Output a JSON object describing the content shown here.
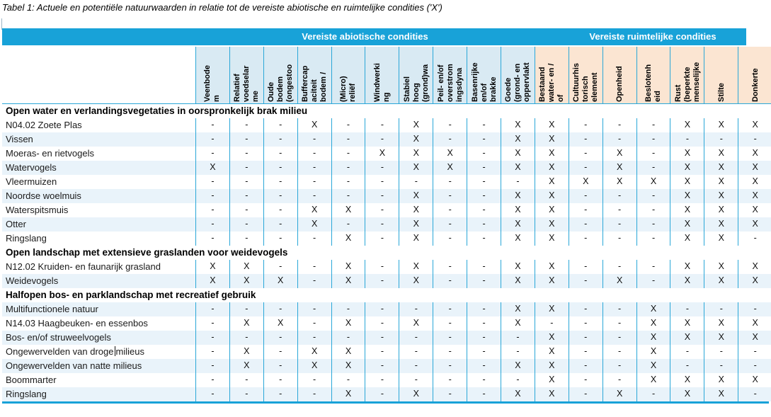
{
  "title": "Tabel 1: Actuele en potentiële natuurwaarden in relatie tot de vereiste abiotische en ruimtelijke condities ('X')",
  "groups": [
    {
      "key": "abio",
      "label": "Vereiste abiotische condities"
    },
    {
      "key": "ruim",
      "label": "Vereiste ruimtelijke condities"
    }
  ],
  "columns": [
    {
      "group": "abio",
      "lines": [
        "Veenbode",
        "m"
      ]
    },
    {
      "group": "abio",
      "lines": [
        "Relatief",
        "voedselar",
        "me"
      ]
    },
    {
      "group": "abio",
      "lines": [
        "Oude",
        "bodem",
        "(ongestoo"
      ]
    },
    {
      "group": "abio",
      "lines": [
        "Buffercap",
        "aciteit",
        "bodem /"
      ]
    },
    {
      "group": "abio",
      "lines": [
        "(Micro)",
        "reliëf"
      ]
    },
    {
      "group": "abio",
      "lines": [
        "Windwerki",
        "ng"
      ]
    },
    {
      "group": "abio",
      "lines": [
        "Stabiel",
        "hoog",
        "(grond)wa"
      ]
    },
    {
      "group": "abio",
      "lines": [
        "Peil- en/of",
        "overstrom",
        "ingsdyna"
      ]
    },
    {
      "group": "abio",
      "lines": [
        "Basenrijke",
        "en/of",
        "brakke"
      ]
    },
    {
      "group": "abio",
      "lines": [
        "Goede",
        "(grond- en",
        "oppervlakt"
      ]
    },
    {
      "group": "ruim",
      "lines": [
        "Bestaand",
        "water- en /",
        "of"
      ]
    },
    {
      "group": "ruim",
      "lines": [
        "Cultuurhis",
        "torisch",
        "element"
      ]
    },
    {
      "group": "ruim",
      "lines": [
        "Openheid"
      ]
    },
    {
      "group": "ruim",
      "lines": [
        "Beslotenh",
        "eid"
      ]
    },
    {
      "group": "ruim",
      "lines": [
        "Rust",
        "(beperkte",
        "menselijke"
      ]
    },
    {
      "group": "ruim",
      "lines": [
        "Stilte"
      ]
    },
    {
      "group": "ruim",
      "lines": [
        "Donkerte"
      ]
    }
  ],
  "rows": [
    {
      "type": "section",
      "label": "Open water en verlandingsvegetaties in oorspronkelijk brak milieu"
    },
    {
      "type": "data",
      "shade": false,
      "label": "N04.02 Zoete Plas",
      "values": [
        "-",
        "-",
        "-",
        "X",
        "-",
        "-",
        "X",
        "-",
        "-",
        "X",
        "X",
        "-",
        "-",
        "-",
        "X",
        "X",
        "X"
      ]
    },
    {
      "type": "data",
      "shade": true,
      "label": "Vissen",
      "values": [
        "-",
        "-",
        "-",
        "-",
        "-",
        "-",
        "X",
        "-",
        "-",
        "X",
        "X",
        "-",
        "-",
        "-",
        "-",
        "-",
        "-"
      ]
    },
    {
      "type": "data",
      "shade": false,
      "label": "Moeras- en rietvogels",
      "values": [
        "-",
        "-",
        "-",
        "-",
        "-",
        "X",
        "X",
        "X",
        "-",
        "X",
        "X",
        "-",
        "X",
        "-",
        "X",
        "X",
        "X"
      ]
    },
    {
      "type": "data",
      "shade": true,
      "label": "Watervogels",
      "values": [
        "X",
        "-",
        "-",
        "-",
        "-",
        "-",
        "X",
        "X",
        "-",
        "X",
        "X",
        "-",
        "X",
        "-",
        "X",
        "X",
        "X"
      ]
    },
    {
      "type": "data",
      "shade": false,
      "label": "Vleermuizen",
      "values": [
        "-",
        "-",
        "-",
        "-",
        "-",
        "-",
        "-",
        "-",
        "-",
        "-",
        "X",
        "X",
        "X",
        "X",
        "X",
        "X",
        "X"
      ]
    },
    {
      "type": "data",
      "shade": true,
      "label": "Noordse woelmuis",
      "values": [
        "-",
        "-",
        "-",
        "-",
        "-",
        "-",
        "X",
        "-",
        "-",
        "X",
        "X",
        "-",
        "-",
        "-",
        "X",
        "X",
        "X"
      ]
    },
    {
      "type": "data",
      "shade": false,
      "label": "Waterspitsmuis",
      "values": [
        "-",
        "-",
        "-",
        "X",
        "X",
        "-",
        "X",
        "-",
        "-",
        "X",
        "X",
        "-",
        "-",
        "-",
        "X",
        "X",
        "X"
      ]
    },
    {
      "type": "data",
      "shade": true,
      "label": "Otter",
      "values": [
        "-",
        "-",
        "-",
        "X",
        "-",
        "-",
        "X",
        "-",
        "-",
        "X",
        "X",
        "-",
        "-",
        "-",
        "X",
        "X",
        "X"
      ]
    },
    {
      "type": "data",
      "shade": false,
      "label": "Ringslang",
      "values": [
        "-",
        "-",
        "-",
        "-",
        "X",
        "-",
        "X",
        "-",
        "-",
        "X",
        "X",
        "-",
        "-",
        "-",
        "X",
        "X",
        "-"
      ]
    },
    {
      "type": "section",
      "label": "Open landschap met extensieve graslanden voor weidevogels"
    },
    {
      "type": "data",
      "shade": false,
      "label": "N12.02 Kruiden- en faunarijk grasland",
      "values": [
        "X",
        "X",
        "-",
        "-",
        "X",
        "-",
        "X",
        "-",
        "-",
        "X",
        "X",
        "-",
        "-",
        "-",
        "X",
        "X",
        "X"
      ]
    },
    {
      "type": "data",
      "shade": true,
      "label": "Weidevogels",
      "values": [
        "X",
        "X",
        "X",
        "-",
        "X",
        "-",
        "X",
        "-",
        "-",
        "X",
        "X",
        "-",
        "X",
        "-",
        "X",
        "X",
        "X"
      ]
    },
    {
      "type": "section",
      "label": "Halfopen bos- en parklandschap met recreatief gebruik"
    },
    {
      "type": "data",
      "shade": true,
      "label": "Multifunctionele natuur",
      "values": [
        "-",
        "-",
        "-",
        "-",
        "-",
        "-",
        "-",
        "-",
        "-",
        "X",
        "X",
        "-",
        "-",
        "X",
        "-",
        "-",
        "-"
      ]
    },
    {
      "type": "data",
      "shade": false,
      "label": "N14.03 Haagbeuken- en essenbos",
      "values": [
        "-",
        "X",
        "X",
        "-",
        "X",
        "-",
        "X",
        "-",
        "-",
        "X",
        "-",
        "-",
        "-",
        "X",
        "X",
        "X",
        "X"
      ]
    },
    {
      "type": "data",
      "shade": true,
      "label": "Bos- en/of struweelvogels",
      "values": [
        "-",
        "-",
        "-",
        "-",
        "-",
        "-",
        "-",
        "-",
        "-",
        "-",
        "X",
        "-",
        "-",
        "X",
        "X",
        "X",
        "X"
      ]
    },
    {
      "type": "data",
      "shade": false,
      "label": "Ongewervelden van droge milieus",
      "caret_split": 23,
      "values": [
        "-",
        "X",
        "-",
        "X",
        "X",
        "-",
        "-",
        "-",
        "-",
        "-",
        "X",
        "-",
        "-",
        "X",
        "-",
        "-",
        "-"
      ]
    },
    {
      "type": "data",
      "shade": true,
      "label": "Ongewervelden van natte milieus",
      "values": [
        "-",
        "X",
        "-",
        "X",
        "X",
        "-",
        "-",
        "-",
        "-",
        "X",
        "X",
        "-",
        "-",
        "X",
        "-",
        "-",
        "-"
      ]
    },
    {
      "type": "data",
      "shade": false,
      "label": "Boommarter",
      "values": [
        "-",
        "-",
        "-",
        "-",
        "-",
        "-",
        "-",
        "-",
        "-",
        "-",
        "X",
        "-",
        "-",
        "X",
        "X",
        "X",
        "X"
      ]
    },
    {
      "type": "data",
      "shade": true,
      "label": "Ringslang",
      "values": [
        "-",
        "-",
        "-",
        "-",
        "X",
        "-",
        "X",
        "-",
        "-",
        "X",
        "X",
        "-",
        "X",
        "-",
        "X",
        "X",
        "-"
      ]
    }
  ],
  "colors": {
    "band": "#18a2d8",
    "band_text": "#ffffff",
    "line": "#2aa7d8",
    "header_abiotic_bg": "#d9eaf3",
    "header_spatial_bg": "#fbe5d2",
    "row_shade": "#e9f3fa"
  }
}
